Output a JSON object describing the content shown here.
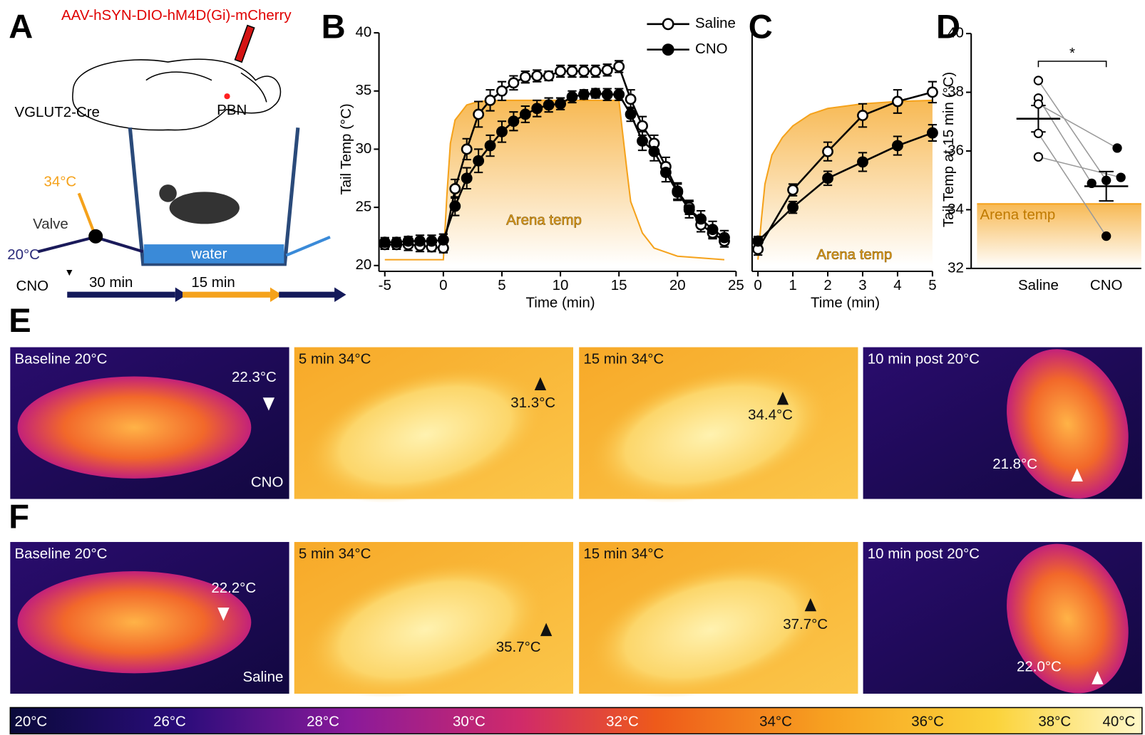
{
  "panels": [
    "A",
    "B",
    "C",
    "D",
    "E",
    "F"
  ],
  "diagram": {
    "virus": "AAV-hSYN-DIO-hM4D(Gi)-mCherry",
    "mouse_line": "VGLUT2-Cre",
    "region": "PBN",
    "warm": "34°C",
    "valve": "Valve",
    "cold": "20°C",
    "water": "water",
    "drug": "CNO",
    "phase1": "30 min",
    "phase2": "15 min"
  },
  "chart_data": [
    {
      "type": "line",
      "xlabel": "Time (min)",
      "ylabel": "Tail Temp (°C)",
      "x": [
        -5,
        -4,
        -3,
        -2,
        -1,
        0,
        1,
        2,
        3,
        4,
        5,
        6,
        7,
        8,
        9,
        10,
        11,
        12,
        13,
        14,
        15,
        16,
        17,
        18,
        19,
        20,
        21,
        22,
        23,
        24
      ],
      "series": [
        {
          "name": "Saline",
          "color": "#000000",
          "marker": "open",
          "values": [
            21.8,
            21.8,
            21.8,
            21.7,
            21.6,
            21.5,
            26.6,
            30.0,
            33.0,
            34.2,
            35.0,
            35.7,
            36.2,
            36.3,
            36.3,
            36.7,
            36.7,
            36.7,
            36.7,
            36.8,
            37.1,
            34.3,
            32.0,
            30.5,
            28.5,
            26.4,
            25.0,
            23.5,
            22.8,
            22.1
          ],
          "errors": [
            0.4,
            0.4,
            0.5,
            0.5,
            0.4,
            0.4,
            0.8,
            0.9,
            1.1,
            0.9,
            0.8,
            0.6,
            0.5,
            0.5,
            0.4,
            0.5,
            0.5,
            0.5,
            0.5,
            0.5,
            0.5,
            0.8,
            0.8,
            0.7,
            0.8,
            0.7,
            0.6,
            0.6,
            0.5,
            0.5
          ]
        },
        {
          "name": "CNO",
          "color": "#000000",
          "marker": "filled",
          "values": [
            22.0,
            22.0,
            22.1,
            22.1,
            22.1,
            22.2,
            25.1,
            27.5,
            29.0,
            30.3,
            31.5,
            32.4,
            33.0,
            33.5,
            33.8,
            33.9,
            34.5,
            34.7,
            34.8,
            34.7,
            34.7,
            33.0,
            30.7,
            29.8,
            28.0,
            26.3,
            24.8,
            24.0,
            23.1,
            22.4
          ],
          "errors": [
            0.4,
            0.4,
            0.4,
            0.5,
            0.5,
            0.5,
            0.8,
            0.9,
            1.0,
            0.9,
            0.9,
            0.8,
            0.7,
            0.7,
            0.6,
            0.5,
            0.5,
            0.4,
            0.4,
            0.5,
            0.5,
            0.6,
            0.8,
            0.8,
            0.8,
            0.7,
            0.7,
            0.7,
            0.7,
            0.6
          ]
        }
      ],
      "area": {
        "x": [
          -5,
          0,
          0.3,
          0.6,
          1,
          2,
          3,
          5,
          15,
          15.3,
          15.7,
          16,
          17,
          18,
          20,
          24
        ],
        "values": [
          20.5,
          20.5,
          26,
          30.5,
          32.5,
          33.8,
          34.1,
          34.2,
          34.2,
          31.5,
          28,
          25.5,
          22.8,
          21.5,
          20.8,
          20.5
        ],
        "color": "#f5a21b"
      },
      "annotation": "Arena temp",
      "xlim": [
        -5,
        25
      ],
      "xticks": [
        -5,
        0,
        5,
        10,
        15,
        20,
        25
      ],
      "ylim": [
        20,
        40
      ],
      "yticks": [
        20,
        25,
        30,
        35,
        40
      ],
      "legend": "top-right"
    },
    {
      "type": "line",
      "xlabel": "Time (min)",
      "x": [
        0,
        1,
        2,
        3,
        4,
        5
      ],
      "series": [
        {
          "name": "Saline",
          "color": "#000000",
          "marker": "open",
          "values": [
            21.4,
            26.5,
            29.8,
            32.9,
            34.1,
            34.9
          ],
          "errors": [
            0.5,
            0.5,
            0.8,
            1.0,
            1.0,
            0.9
          ]
        },
        {
          "name": "CNO",
          "color": "#000000",
          "marker": "filled",
          "values": [
            22.1,
            25.0,
            27.5,
            28.9,
            30.3,
            31.4
          ],
          "errors": [
            0.4,
            0.5,
            0.6,
            0.8,
            0.8,
            0.7
          ]
        }
      ],
      "area": {
        "x": [
          0,
          0.1,
          0.2,
          0.4,
          0.7,
          1,
          1.5,
          2,
          3,
          4,
          5
        ],
        "values": [
          20.5,
          24,
          27,
          29.5,
          31,
          32,
          33,
          33.5,
          33.9,
          34.1,
          34.2
        ],
        "color": "#f5a21b"
      },
      "annotation": "Arena temp",
      "xlim": [
        0,
        5
      ],
      "xticks": [
        0,
        1,
        2,
        3,
        4,
        5
      ],
      "ylim": [
        20,
        40
      ]
    },
    {
      "type": "paired",
      "ylabel": "Tail Temp at 15 min (°C)",
      "categories": [
        "Saline",
        "CNO"
      ],
      "values": [
        [
          38.4,
          37.8,
          37.6,
          36.6,
          35.8
        ],
        [
          35.0,
          34.9,
          36.1,
          33.1,
          35.1
        ]
      ],
      "means": [
        37.1,
        34.8
      ],
      "sems": [
        0.45,
        0.5
      ],
      "arena": 34.2,
      "annotation": "Arena temp",
      "significance": "*",
      "ylim": [
        32,
        40
      ],
      "yticks": [
        32,
        34,
        36,
        38,
        40
      ]
    }
  ],
  "thermal": [
    {
      "condition": "CNO",
      "images": [
        {
          "label": "Baseline 20°C",
          "temp": "22.3°C"
        },
        {
          "label": "5 min 34°C",
          "temp": "31.3°C"
        },
        {
          "label": "15 min 34°C",
          "temp": "34.4°C"
        },
        {
          "label": "10 min post 20°C",
          "temp": "21.8°C"
        }
      ]
    },
    {
      "condition": "Saline",
      "images": [
        {
          "label": "Baseline 20°C",
          "temp": "22.2°C"
        },
        {
          "label": "5 min 34°C",
          "temp": "35.7°C"
        },
        {
          "label": "15 min 34°C",
          "temp": "37.7°C"
        },
        {
          "label": "10 min post 20°C",
          "temp": "22.0°C"
        }
      ]
    }
  ],
  "colorbar": [
    "20°C",
    "26°C",
    "28°C",
    "30°C",
    "32°C",
    "34°C",
    "36°C",
    "38°C",
    "40°C"
  ]
}
